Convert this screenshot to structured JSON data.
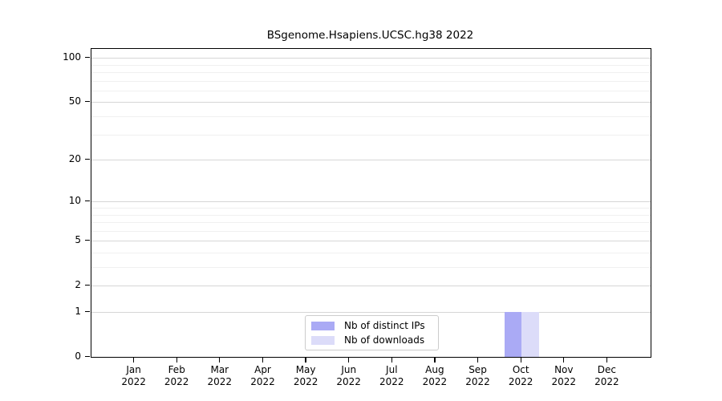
{
  "chart_data": {
    "type": "bar",
    "title": "BSgenome.Hsapiens.UCSC.hg38 2022",
    "categories": [
      "Jan",
      "Feb",
      "Mar",
      "Apr",
      "May",
      "Jun",
      "Jul",
      "Aug",
      "Sep",
      "Oct",
      "Nov",
      "Dec"
    ],
    "category_year": "2022",
    "series": [
      {
        "name": "Nb of distinct IPs",
        "color": "#aaaaf5",
        "values": [
          0,
          0,
          0,
          0,
          0,
          0,
          0,
          0,
          0,
          1,
          0,
          0
        ]
      },
      {
        "name": "Nb of downloads",
        "color": "#dcdcf9",
        "values": [
          0,
          0,
          0,
          0,
          0,
          0,
          0,
          0,
          0,
          1,
          0,
          0
        ]
      }
    ],
    "xlabel": "",
    "ylabel": "",
    "yscale": "log1p",
    "ylim": [
      0,
      115
    ],
    "yticks": [
      0,
      1,
      2,
      5,
      10,
      20,
      50,
      100
    ],
    "gridlines": [
      1,
      2,
      3,
      4,
      5,
      6,
      7,
      8,
      9,
      10,
      20,
      30,
      40,
      50,
      60,
      70,
      80,
      90,
      100
    ],
    "grid": "horizontal",
    "legend_position": "lower center",
    "axis_color": "#000000",
    "major_grid_color": "#d6d6d6",
    "minor_grid_color": "#f0f0f0"
  }
}
